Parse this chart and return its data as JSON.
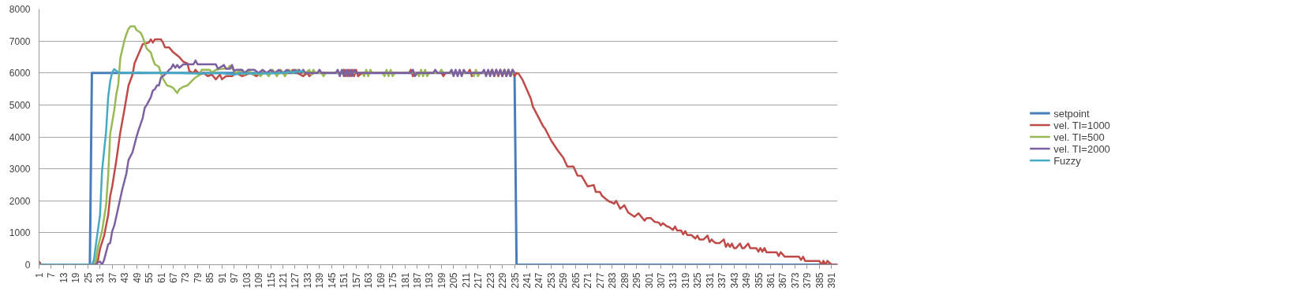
{
  "chart_data": {
    "type": "line",
    "xlim": [
      1,
      394
    ],
    "xticks": [
      1,
      7,
      13,
      19,
      25,
      31,
      37,
      43,
      49,
      55,
      61,
      67,
      73,
      79,
      85,
      91,
      97,
      103,
      109,
      115,
      121,
      127,
      133,
      139,
      145,
      151,
      157,
      163,
      169,
      175,
      181,
      187,
      193,
      199,
      205,
      211,
      217,
      223,
      229,
      235,
      241,
      247,
      253,
      259,
      265,
      271,
      277,
      283,
      289,
      295,
      301,
      307,
      313,
      319,
      325,
      331,
      337,
      343,
      349,
      355,
      361,
      367,
      373,
      379,
      385,
      391
    ],
    "ylim": [
      0,
      8000
    ],
    "yticks": [
      0,
      1000,
      2000,
      3000,
      4000,
      5000,
      6000,
      7000,
      8000
    ],
    "grid": "y",
    "legend": "right",
    "marker": "none",
    "line_style": "solid",
    "series": [
      {
        "name": "setpoint",
        "color": "#4a7ebb",
        "x": [
          1,
          26,
          27,
          235,
          236,
          394
        ],
        "values": [
          0,
          0,
          6000,
          6000,
          0,
          0
        ]
      },
      {
        "name": "vel. TI=1000",
        "color": "#be4b48",
        "x": [
          1,
          2,
          29,
          30,
          31,
          33,
          35,
          36,
          37,
          39,
          41,
          43,
          45,
          47,
          48,
          52,
          55,
          56,
          57,
          58,
          61,
          62,
          63,
          65,
          67,
          70,
          72,
          74,
          75,
          77,
          78,
          80,
          82,
          84,
          86,
          88,
          90,
          91,
          93,
          96,
          98,
          101,
          103,
          105,
          108,
          110,
          124,
          126,
          128,
          131,
          133,
          134,
          136,
          150,
          151,
          152,
          153,
          154,
          155,
          156,
          157,
          158,
          160,
          183,
          184,
          185,
          186,
          199,
          200,
          201,
          212,
          213,
          214,
          215,
          223,
          224,
          225,
          226,
          227,
          228,
          229,
          230,
          231,
          232,
          233,
          234,
          235,
          236,
          237,
          239,
          241,
          243,
          244,
          249,
          250,
          253,
          256,
          259,
          261,
          264,
          266,
          268,
          271,
          274,
          275,
          277,
          278,
          281,
          284,
          285,
          287,
          289,
          291,
          294,
          296,
          299,
          300,
          302,
          304,
          306,
          307,
          308,
          310,
          311,
          313,
          314,
          315,
          317,
          318,
          319,
          320,
          322,
          324,
          325,
          326,
          328,
          330,
          331,
          332,
          333,
          334,
          336,
          338,
          339,
          340,
          341,
          342,
          343,
          344,
          346,
          347,
          348,
          350,
          351,
          354,
          355,
          356,
          357,
          358,
          359,
          364,
          365,
          366,
          368,
          375,
          376,
          377,
          378,
          385,
          386,
          387,
          388,
          389,
          391,
          394
        ],
        "values": [
          100,
          0,
          0,
          150,
          500,
          900,
          1550,
          2150,
          2450,
          3250,
          4150,
          4850,
          5600,
          5950,
          6300,
          6900,
          6950,
          7050,
          6950,
          7050,
          7050,
          6950,
          6800,
          6800,
          6650,
          6500,
          6350,
          6300,
          6050,
          6000,
          6100,
          5950,
          6000,
          5900,
          5950,
          5800,
          5950,
          5800,
          5900,
          5900,
          6000,
          5900,
          5950,
          6000,
          5900,
          6000,
          6000,
          6100,
          6000,
          5900,
          6000,
          5900,
          6000,
          6000,
          6100,
          5900,
          6100,
          5900,
          6100,
          5900,
          6100,
          5900,
          6000,
          6000,
          6100,
          5900,
          6000,
          6000,
          5900,
          6000,
          6000,
          6100,
          5900,
          6000,
          6000,
          6100,
          5900,
          6100,
          5900,
          6100,
          5900,
          6100,
          5900,
          6100,
          5900,
          6100,
          5900,
          6000,
          5980,
          5780,
          5490,
          5200,
          4950,
          4340,
          4260,
          3890,
          3600,
          3350,
          3070,
          3070,
          2790,
          2780,
          2450,
          2490,
          2280,
          2280,
          2160,
          2000,
          1910,
          2000,
          1750,
          1860,
          1630,
          1500,
          1610,
          1380,
          1460,
          1460,
          1340,
          1320,
          1230,
          1300,
          1200,
          1180,
          1090,
          1200,
          1070,
          1070,
          950,
          1050,
          930,
          930,
          820,
          910,
          790,
          790,
          910,
          710,
          790,
          720,
          680,
          680,
          790,
          560,
          660,
          560,
          660,
          520,
          520,
          660,
          520,
          520,
          660,
          520,
          520,
          410,
          520,
          410,
          520,
          390,
          390,
          270,
          390,
          250,
          250,
          150,
          250,
          120,
          120,
          0,
          120,
          0,
          120,
          0,
          0
        ]
      },
      {
        "name": "vel. TI=500",
        "color": "#98b954",
        "x": [
          1,
          28,
          29,
          30,
          32,
          34,
          35,
          36,
          38,
          39,
          40,
          41,
          43,
          44,
          45,
          46,
          48,
          49,
          51,
          52,
          53,
          54,
          56,
          57,
          58,
          60,
          61,
          62,
          64,
          66,
          67,
          69,
          70,
          72,
          74,
          76,
          78,
          80,
          81,
          85,
          86,
          88,
          91,
          94,
          95,
          97,
          98,
          100,
          102,
          104,
          106,
          108,
          110,
          112,
          114,
          116,
          118,
          120,
          122,
          124,
          126,
          128,
          130,
          132,
          134,
          135,
          136,
          137,
          140,
          141,
          142,
          150,
          151,
          152,
          160,
          161,
          162,
          163,
          164,
          165,
          170,
          171,
          172,
          173,
          174,
          175,
          176,
          187,
          188,
          189,
          190,
          191,
          192,
          193,
          198,
          199,
          200,
          214,
          215,
          216,
          217,
          218,
          231,
          232,
          233,
          234,
          235
        ],
        "values": [
          0,
          0,
          150,
          560,
          1050,
          1870,
          2780,
          4090,
          4830,
          5330,
          5650,
          6470,
          7010,
          7220,
          7380,
          7460,
          7460,
          7340,
          7260,
          7130,
          6930,
          6760,
          6640,
          6430,
          6270,
          6190,
          5980,
          5820,
          5610,
          5570,
          5530,
          5370,
          5490,
          5570,
          5610,
          5740,
          5860,
          5940,
          6100,
          6100,
          6020,
          6100,
          6130,
          6150,
          6230,
          6060,
          6000,
          6100,
          5950,
          6100,
          5950,
          6000,
          5900,
          6050,
          5900,
          6100,
          5900,
          6100,
          5900,
          6100,
          6000,
          6100,
          6000,
          6000,
          6100,
          5950,
          6100,
          6000,
          6000,
          5900,
          6000,
          6000,
          5950,
          6000,
          6000,
          5900,
          6100,
          5900,
          6100,
          6000,
          6000,
          5900,
          6100,
          5900,
          6100,
          5900,
          6000,
          6000,
          5900,
          6100,
          5900,
          6100,
          5900,
          6000,
          6000,
          6100,
          6000,
          6000,
          5900,
          6100,
          5900,
          6000,
          6000,
          6100,
          5900,
          6000,
          6000
        ]
      },
      {
        "name": "vel. TI=2000",
        "color": "#7d60a0",
        "x": [
          1,
          29,
          30,
          31,
          32,
          33,
          34,
          35,
          36,
          37,
          38,
          40,
          42,
          44,
          45,
          47,
          49,
          50,
          52,
          53,
          54,
          56,
          57,
          58,
          59,
          60,
          61,
          62,
          64,
          65,
          66,
          67,
          68,
          69,
          70,
          72,
          77,
          78,
          79,
          88,
          89,
          92,
          93,
          95,
          96,
          97,
          98,
          101,
          102,
          104,
          107,
          109,
          111,
          113,
          115,
          117,
          119,
          121,
          123,
          125,
          127,
          128,
          129,
          130,
          131,
          132,
          138,
          139,
          140,
          147,
          148,
          149,
          150,
          151,
          152,
          153,
          154,
          155,
          156,
          157,
          184,
          185,
          186,
          187,
          195,
          196,
          197,
          203,
          204,
          205,
          206,
          207,
          208,
          209,
          210,
          211,
          219,
          220,
          221,
          222,
          223,
          224,
          225,
          226,
          227,
          228,
          229,
          230,
          231,
          232,
          233,
          234,
          235
        ],
        "values": [
          0,
          0,
          70,
          100,
          0,
          150,
          390,
          640,
          680,
          1050,
          1220,
          1790,
          2370,
          2860,
          3270,
          3520,
          4010,
          4220,
          4590,
          4910,
          5000,
          5240,
          5450,
          5490,
          5610,
          5610,
          5860,
          5900,
          6020,
          6100,
          6150,
          6270,
          6160,
          6250,
          6160,
          6270,
          6270,
          6390,
          6270,
          6270,
          6130,
          6250,
          6130,
          6130,
          6250,
          6060,
          6100,
          6100,
          6000,
          6100,
          6100,
          6000,
          6100,
          6000,
          6100,
          6000,
          6100,
          6000,
          6100,
          6000,
          6100,
          6000,
          6100,
          6000,
          6100,
          6000,
          6000,
          6100,
          6000,
          6000,
          6100,
          5900,
          6100,
          5900,
          6100,
          5900,
          6100,
          5900,
          6100,
          6000,
          6000,
          6100,
          5900,
          6000,
          6000,
          6100,
          6000,
          6000,
          6100,
          5900,
          6100,
          5900,
          6100,
          5900,
          6100,
          6000,
          6000,
          6100,
          5900,
          6100,
          5900,
          6100,
          5900,
          6100,
          5950,
          6100,
          5900,
          6100,
          5900,
          6100,
          5900,
          6100,
          6000
        ]
      },
      {
        "name": "Fuzzy",
        "color": "#46aac5",
        "x": [
          1,
          27,
          28,
          29,
          31,
          32,
          34,
          35,
          36,
          37,
          38,
          40,
          45,
          50,
          55,
          60,
          70,
          80,
          90,
          97,
          100,
          110,
          120,
          130,
          131
        ],
        "values": [
          0,
          0,
          150,
          640,
          1550,
          2940,
          4170,
          5240,
          5740,
          6020,
          6120,
          6020,
          6000,
          6020,
          6000,
          6000,
          6000,
          5980,
          6000,
          5950,
          5980,
          5980,
          6000,
          6050,
          6050
        ]
      }
    ]
  }
}
